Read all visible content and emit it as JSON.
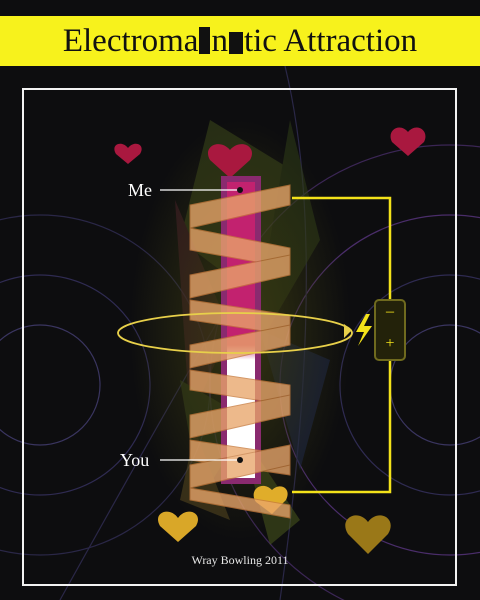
{
  "title": {
    "text": "Electroma",
    "part2": "n",
    "part3": "tic Attraction"
  },
  "labels": {
    "me": "Me",
    "you": "You",
    "minus": "–",
    "plus": "+"
  },
  "credit": "Wray Bowling 2011",
  "colors": {
    "title_bg": "#f7f21c",
    "wire": "#f3e21a",
    "magnet_top": "#c2226f",
    "magnet_bottom": "#ffffff",
    "coil": "#e9a66b",
    "heart_red": "#a9183f",
    "heart_gold": "#d9a728"
  }
}
